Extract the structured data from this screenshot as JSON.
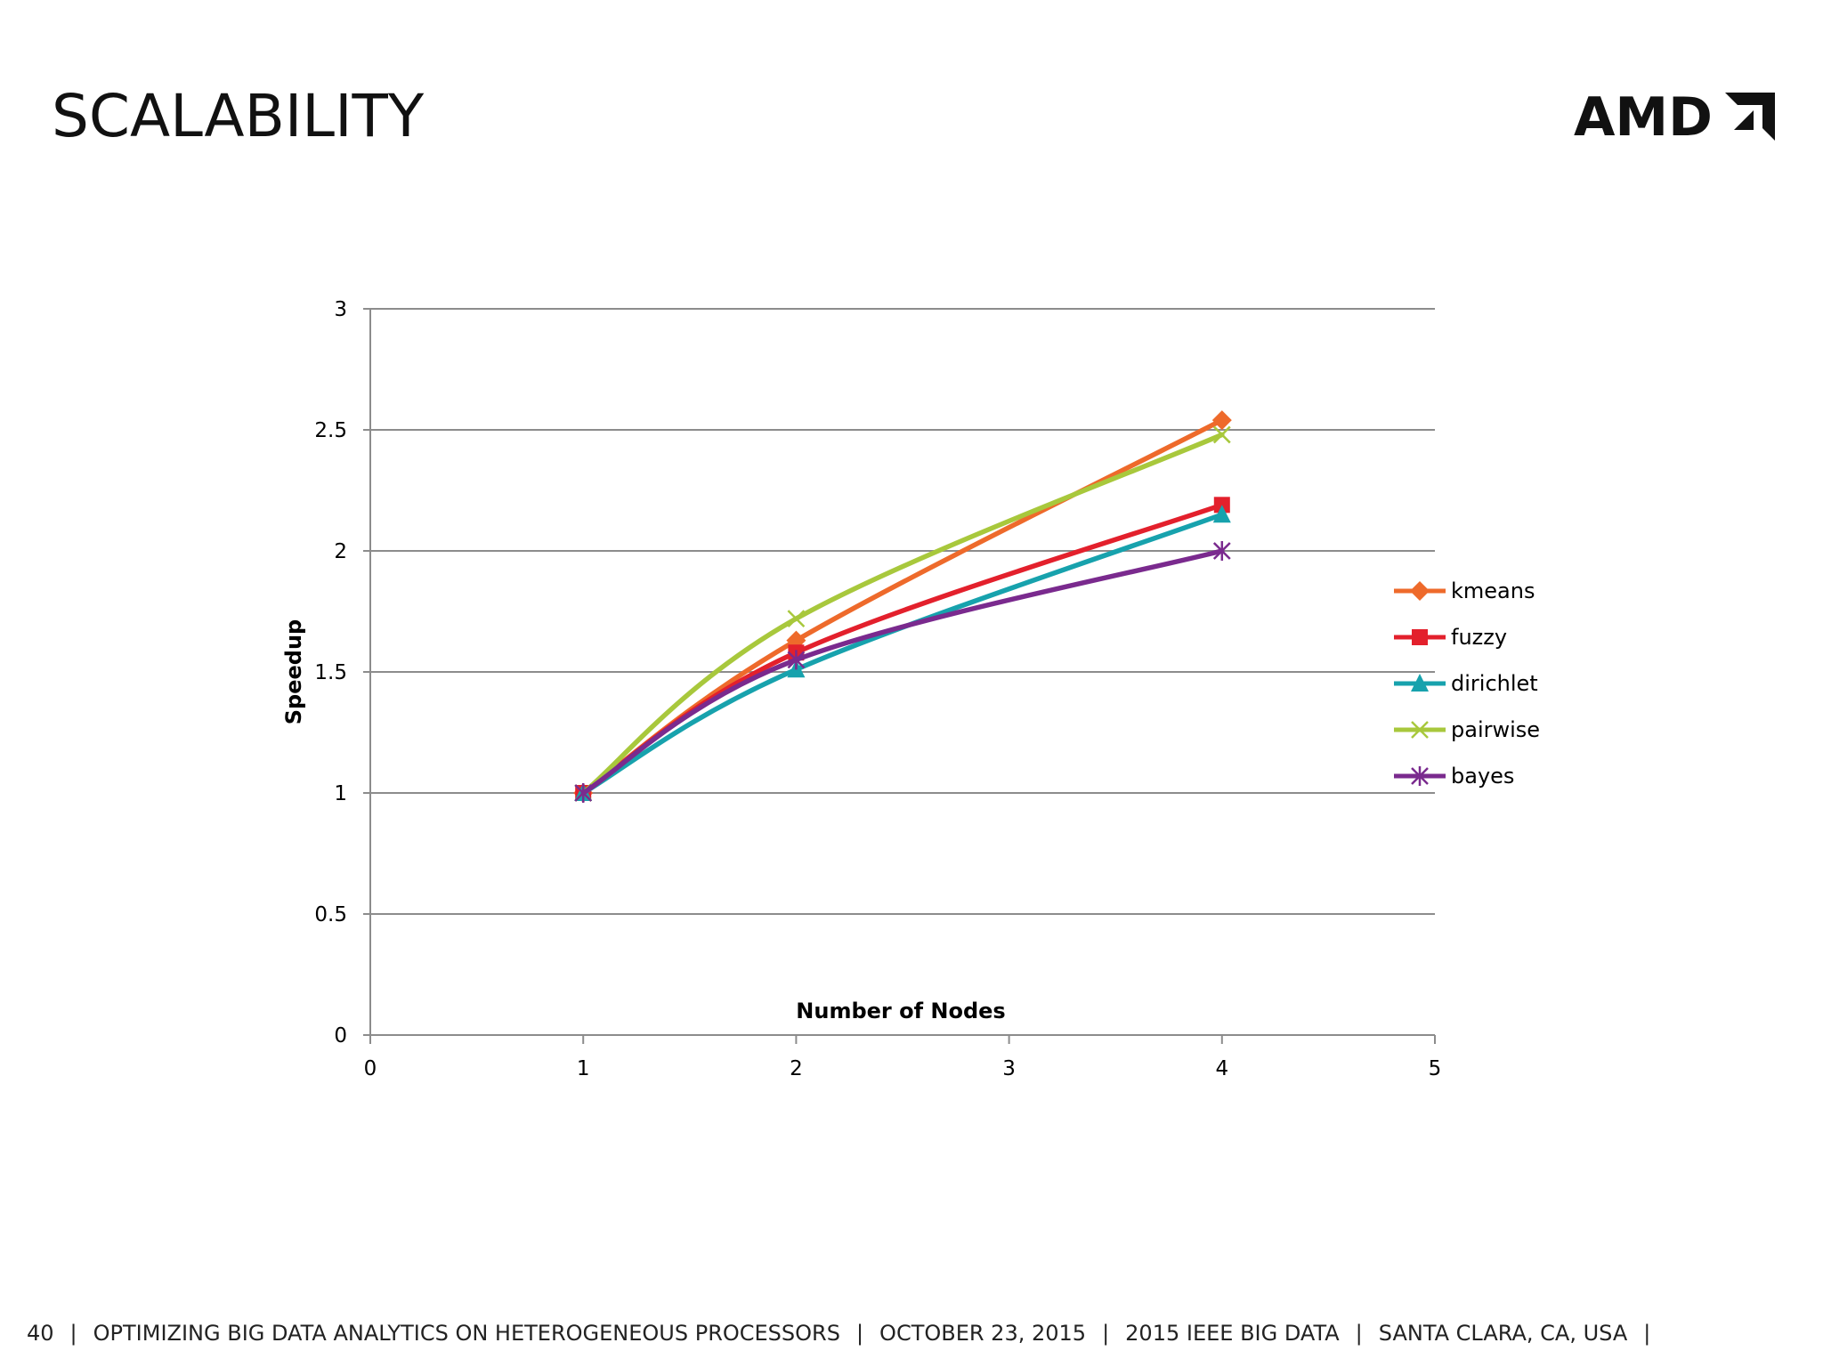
{
  "slide": {
    "title": "SCALABILITY",
    "logo_text": "AMD"
  },
  "footer": {
    "page_number": "40",
    "presentation_title": "OPTIMIZING BIG DATA ANALYTICS ON HETEROGENEOUS PROCESSORS",
    "date": "OCTOBER 23, 2015",
    "event": "2015 IEEE BIG DATA",
    "location": "SANTA CLARA, CA, USA",
    "separator": "|"
  },
  "chart_data": {
    "type": "line",
    "title": "",
    "xlabel": "Number of Nodes",
    "ylabel": "Speedup",
    "xlim": [
      0,
      5
    ],
    "ylim": [
      0,
      3
    ],
    "xticks": [
      "0",
      "1",
      "2",
      "3",
      "4",
      "5"
    ],
    "yticks": [
      "0",
      "0.5",
      "1",
      "1.5",
      "2",
      "2.5",
      "3"
    ],
    "grid": true,
    "legend_position": "right",
    "x": [
      1,
      2,
      4
    ],
    "series": [
      {
        "name": "kmeans",
        "color": "#ee6a2b",
        "marker": "diamond",
        "values": [
          1,
          1.63,
          2.54
        ]
      },
      {
        "name": "fuzzy",
        "color": "#e3202c",
        "marker": "square",
        "values": [
          1,
          1.58,
          2.19
        ]
      },
      {
        "name": "dirichlet",
        "color": "#17a2ad",
        "marker": "triangle",
        "values": [
          1,
          1.51,
          2.15
        ]
      },
      {
        "name": "pairwise",
        "color": "#a8c83c",
        "marker": "x",
        "values": [
          1,
          1.72,
          2.48
        ]
      },
      {
        "name": "bayes",
        "color": "#7a2a8e",
        "marker": "star",
        "values": [
          1,
          1.55,
          2.0
        ]
      }
    ]
  }
}
